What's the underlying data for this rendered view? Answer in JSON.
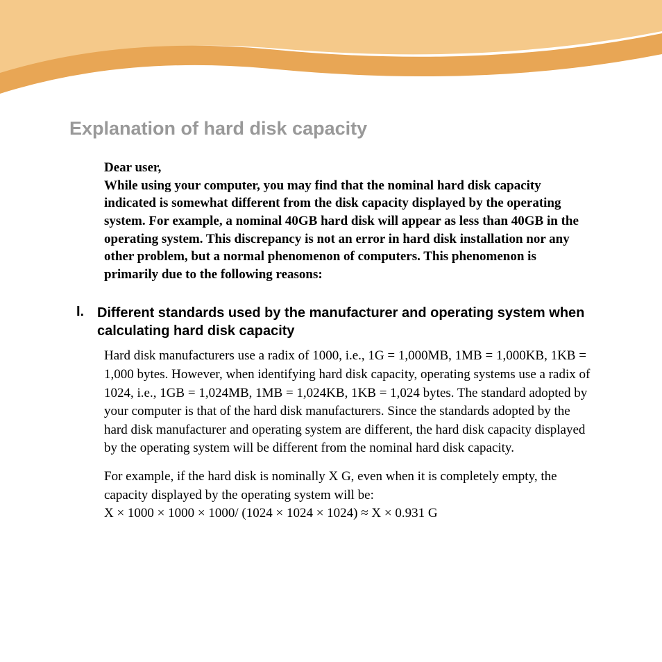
{
  "colors": {
    "wave_light": "#f5c98a",
    "wave_dark": "#e8a655",
    "title_color": "#999999",
    "text_color": "#000000",
    "background": "#ffffff"
  },
  "title": "Explanation of hard disk capacity",
  "intro": "Dear user,\nWhile using your computer, you may find that the nominal hard disk capacity indicated is somewhat different from the disk capacity displayed by the operating system. For example, a nominal 40GB hard disk will appear as less than 40GB in the operating system. This discrepancy is not an error in hard disk installation nor any other problem, but a normal phenomenon of computers. This phenomenon is primarily due to the following reasons:",
  "section": {
    "num": "I.",
    "heading": "Different standards used by the manufacturer and operating system when calculating hard disk capacity",
    "para1": "Hard disk manufacturers use a radix of 1000, i.e., 1G = 1,000MB, 1MB = 1,000KB, 1KB = 1,000 bytes. However, when identifying hard disk capacity, operating systems use a radix of 1024, i.e., 1GB = 1,024MB, 1MB = 1,024KB, 1KB = 1,024 bytes. The standard adopted by your computer is that of the hard disk manufacturers. Since the standards adopted by the hard disk manufacturer and operating system are different, the hard disk capacity displayed by the operating system will be different from the nominal hard disk capacity.",
    "para2": "For example, if the hard disk is nominally X G, even when it is completely empty, the capacity displayed by the operating system will be:\nX × 1000 × 1000 × 1000/ (1024 × 1024 × 1024) ≈ X × 0.931 G"
  }
}
